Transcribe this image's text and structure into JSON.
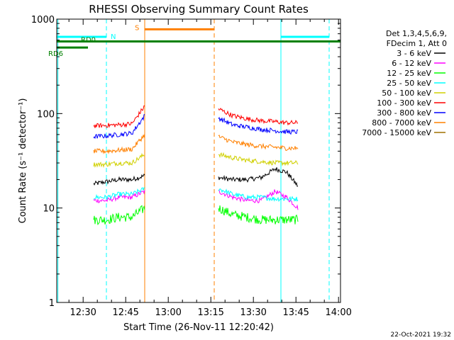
{
  "chart_data": {
    "type": "line",
    "title": "RHESSI Observing Summary Count Rates",
    "xlabel": "Start Time (26-Nov-11 12:20:42)",
    "ylabel": "Count Rate (s⁻¹ detector⁻¹)",
    "yscale": "log",
    "ylim": [
      1,
      1000
    ],
    "xlim_minutes": [
      0,
      100
    ],
    "x_ticks": [
      {
        "t": 9.3,
        "label": "12:30"
      },
      {
        "t": 24.3,
        "label": "12:45"
      },
      {
        "t": 39.3,
        "label": "13:00"
      },
      {
        "t": 54.3,
        "label": "13:15"
      },
      {
        "t": 69.3,
        "label": "13:30"
      },
      {
        "t": 84.3,
        "label": "13:45"
      },
      {
        "t": 99.3,
        "label": "14:00"
      }
    ],
    "y_ticks": [
      {
        "v": 1,
        "label": "1"
      },
      {
        "v": 10,
        "label": "10"
      },
      {
        "v": 100,
        "label": "100"
      },
      {
        "v": 1000,
        "label": "1000"
      }
    ],
    "legend": {
      "placement": "right",
      "header": [
        "Det 1,3,4,5,6,9,",
        "FDecim 1, Att 0"
      ]
    },
    "series": [
      {
        "name": "3 - 6 keV",
        "color": "#000000",
        "seg1": [
          18,
          19,
          20,
          20,
          22
        ],
        "seg2": [
          21,
          20,
          20,
          21,
          26,
          24,
          17
        ]
      },
      {
        "name": "6 - 12 keV",
        "color": "#ff00ff",
        "seg1": [
          12,
          12,
          13,
          13,
          15
        ],
        "seg2": [
          15,
          13,
          12,
          12,
          15,
          13,
          10
        ]
      },
      {
        "name": "12 - 25 keV",
        "color": "#00ff00",
        "seg1": [
          7.5,
          7.5,
          8,
          8,
          10
        ],
        "seg2": [
          10,
          8.5,
          8,
          7.5,
          7.5,
          7.5,
          7.5
        ]
      },
      {
        "name": "25 - 50 keV",
        "color": "#00ffff",
        "seg1": [
          13,
          13,
          14,
          14,
          16
        ],
        "seg2": [
          16,
          14,
          13,
          13,
          12.5,
          12.5,
          12.5
        ]
      },
      {
        "name": "50 - 100 keV",
        "color": "#d0d000",
        "seg1": [
          29,
          29,
          30,
          30,
          37
        ],
        "seg2": [
          37,
          34,
          32,
          31,
          30,
          30,
          30
        ]
      },
      {
        "name": "100 - 300 keV",
        "color": "#ff0000",
        "seg1": [
          74,
          75,
          76,
          78,
          120
        ],
        "seg2": [
          112,
          95,
          88,
          84,
          82,
          80,
          80
        ]
      },
      {
        "name": "300 - 800 keV",
        "color": "#0000ff",
        "seg1": [
          57,
          58,
          60,
          62,
          95
        ],
        "seg2": [
          90,
          76,
          72,
          68,
          66,
          64,
          64
        ]
      },
      {
        "name": "800 - 7000 keV",
        "color": "#ff8000",
        "seg1": [
          40,
          40,
          41,
          42,
          60
        ],
        "seg2": [
          57,
          50,
          47,
          45,
          44,
          43,
          43
        ]
      },
      {
        "name": "7000 - 15000 keV",
        "color": "#a07000",
        "seg1": [],
        "seg2": []
      }
    ],
    "seg1_times": [
      13.0,
      17.5,
      22.0,
      26.5,
      31.0
    ],
    "seg2_times": [
      57.0,
      62.0,
      67.0,
      72.0,
      77.0,
      81.0,
      85.0
    ],
    "flags": [
      {
        "label": "N",
        "color": "#00ffff",
        "value": 650,
        "spans": [
          [
            0,
            17.5
          ],
          [
            79,
            96
          ]
        ]
      },
      {
        "label": "S",
        "color": "#ff8000",
        "value": 780,
        "spans": [
          [
            31,
            55.5
          ]
        ]
      },
      {
        "label": "RD0",
        "color": "#008000",
        "value": 580,
        "spans": [
          [
            0,
            100
          ]
        ]
      },
      {
        "label": "RD6",
        "color": "#008000",
        "value": 500,
        "spans": [
          [
            0,
            11
          ]
        ]
      }
    ],
    "vertical_markers": [
      {
        "t": 0.4,
        "color": "#00ffff",
        "dashed": false
      },
      {
        "t": 17.5,
        "color": "#00ffff",
        "dashed": true
      },
      {
        "t": 31.0,
        "color": "#ff8000",
        "dashed": false
      },
      {
        "t": 55.5,
        "color": "#ff8000",
        "dashed": true
      },
      {
        "t": 79.0,
        "color": "#00ffff",
        "dashed": false
      },
      {
        "t": 96.0,
        "color": "#00ffff",
        "dashed": true
      }
    ],
    "timestamp": "22-Oct-2021 19:32"
  }
}
